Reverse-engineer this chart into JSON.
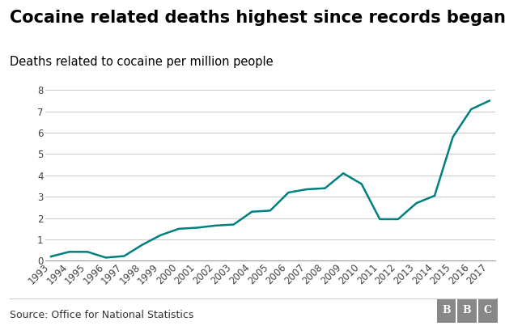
{
  "title": "Cocaine related deaths highest since records began",
  "subtitle": "Deaths related to cocaine per million people",
  "source": "Source: Office for National Statistics",
  "bbc_label": "BBC",
  "years": [
    1993,
    1994,
    1995,
    1996,
    1997,
    1998,
    1999,
    2000,
    2001,
    2002,
    2003,
    2004,
    2005,
    2006,
    2007,
    2008,
    2009,
    2010,
    2011,
    2012,
    2013,
    2014,
    2015,
    2016,
    2017
  ],
  "values": [
    0.2,
    0.42,
    0.42,
    0.15,
    0.22,
    0.75,
    1.2,
    1.5,
    1.55,
    1.65,
    1.7,
    2.3,
    2.35,
    3.2,
    3.35,
    3.4,
    4.1,
    3.6,
    1.95,
    1.95,
    2.7,
    3.05,
    5.8,
    7.1,
    7.5
  ],
  "line_color": "#008080",
  "background_color": "#ffffff",
  "grid_color": "#cccccc",
  "ylim": [
    0,
    8.4
  ],
  "yticks": [
    0,
    1,
    2,
    3,
    4,
    5,
    6,
    7,
    8
  ],
  "title_fontsize": 15,
  "subtitle_fontsize": 10.5,
  "source_fontsize": 9,
  "tick_fontsize": 8.5,
  "line_width": 1.8,
  "title_color": "#000000",
  "subtitle_color": "#000000",
  "source_color": "#333333"
}
